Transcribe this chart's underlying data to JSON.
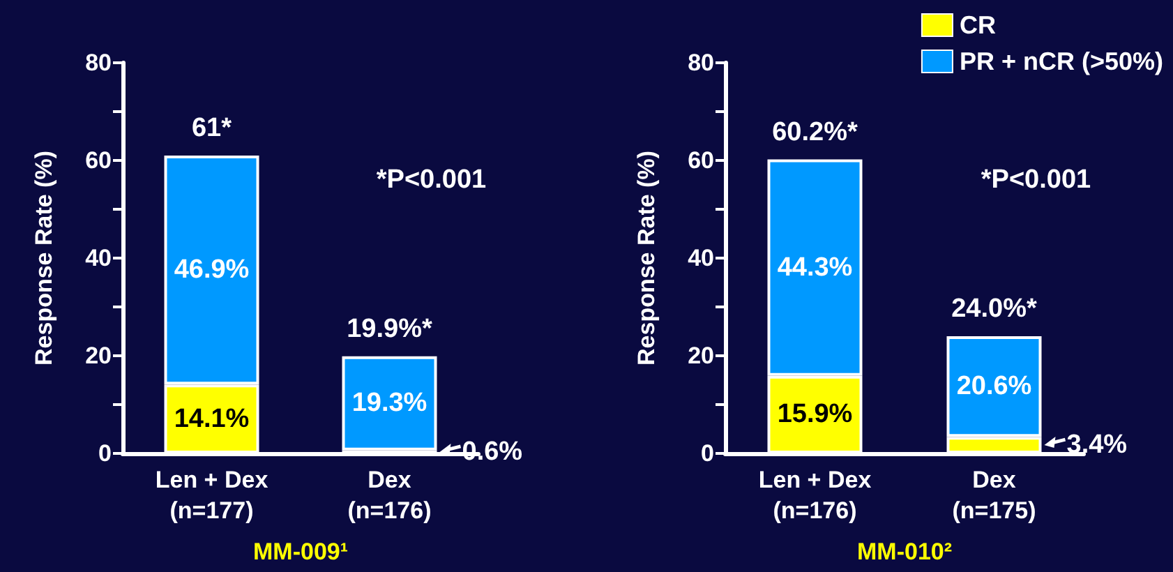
{
  "chart_data": [
    {
      "type": "bar",
      "stacked": true,
      "categories": [
        "Len + Dex\n(n=177)",
        "Dex\n(n=176)"
      ],
      "ylabel": "Response Rate (%)",
      "xlabel": "MM-009¹",
      "ylim": [
        0,
        80
      ],
      "yticks": [
        0,
        {
          "value": 10,
          "label": null
        },
        20,
        {
          "value": 30,
          "label": null
        },
        40,
        {
          "value": 50,
          "label": null
        },
        60,
        {
          "value": 70,
          "label": null
        },
        80
      ],
      "grid": false,
      "legend": false,
      "series": [
        {
          "color": "#ffff00",
          "values": [
            14.1,
            0.6
          ],
          "value_labels": [
            "14.1%",
            "0.6%"
          ]
        },
        {
          "color": "#0099ff",
          "values": [
            46.9,
            19.3
          ],
          "value_labels": [
            "46.9%",
            "19.3%"
          ]
        }
      ],
      "totals": [
        "61*",
        "19.9%*"
      ],
      "annotations": [
        "*P<0.001"
      ]
    },
    {
      "type": "bar",
      "stacked": true,
      "categories": [
        "Len + Dex\n(n=176)",
        "Dex\n(n=175)"
      ],
      "ylabel": "Response Rate (%)",
      "xlabel": "MM-010²",
      "ylim": [
        0,
        80
      ],
      "yticks": [
        0,
        {
          "value": 10,
          "label": null
        },
        20,
        {
          "value": 30,
          "label": null
        },
        40,
        {
          "value": 50,
          "label": null
        },
        60,
        {
          "value": 70,
          "label": null
        },
        80
      ],
      "grid": false,
      "legend": "top right",
      "series": [
        {
          "name": "CR",
          "color": "#ffff00",
          "values": [
            15.9,
            3.4
          ],
          "value_labels": [
            "15.9%",
            "3.4%"
          ]
        },
        {
          "name": "PR + nCR (>50%)",
          "color": "#0099ff",
          "values": [
            44.3,
            20.6
          ],
          "value_labels": [
            "44.3%",
            "20.6%"
          ]
        }
      ],
      "totals": [
        "60.2%*",
        "24.0%*"
      ],
      "annotations": [
        "*P<0.001"
      ]
    }
  ]
}
